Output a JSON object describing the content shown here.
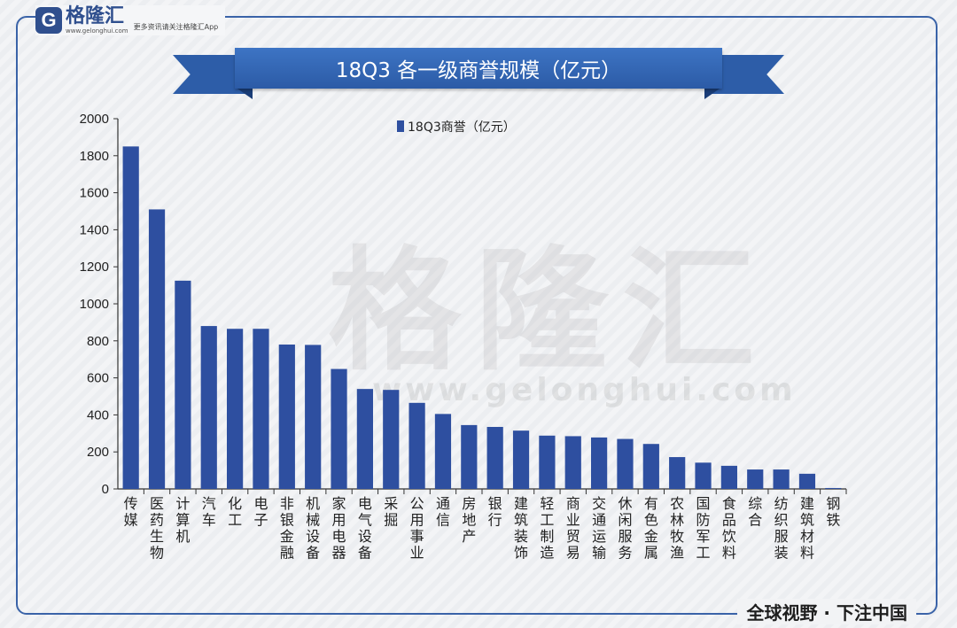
{
  "brand": {
    "name": "格隆汇",
    "logo_letter": "G",
    "url": "www.gelonghui.com",
    "slogan": "更多资讯请关注格隆汇App",
    "watermark_name": "格隆汇",
    "watermark_url": "www.gelonghui.com",
    "bottom_slogan": "全球视野 · 下注中国"
  },
  "colors": {
    "bar": "#2e4fa0",
    "ribbon": "#2d5da8",
    "frame": "#3a63a8"
  },
  "chart_data": {
    "type": "bar",
    "title": "18Q3 各一级商誉规模（亿元）",
    "legend": {
      "label": "18Q3商誉（亿元）",
      "position": "top-center"
    },
    "ylim": [
      0,
      2000
    ],
    "yticks": [
      0,
      200,
      400,
      600,
      800,
      1000,
      1200,
      1400,
      1600,
      1800,
      2000
    ],
    "grid": false,
    "categories": [
      "传媒",
      "医药生物",
      "计算机",
      "汽车",
      "化工",
      "电子",
      "非银金融",
      "机械设备",
      "家用电器",
      "电气设备",
      "采掘",
      "公用事业",
      "通信",
      "房地产",
      "银行",
      "建筑装饰",
      "轻工制造",
      "商业贸易",
      "交通运输",
      "休闲服务",
      "有色金属",
      "农林牧渔",
      "国防军工",
      "食品饮料",
      "综合",
      "纺织服装",
      "建筑材料",
      "钢铁"
    ],
    "values": [
      1850,
      1510,
      1125,
      880,
      865,
      865,
      780,
      778,
      648,
      540,
      535,
      465,
      405,
      345,
      335,
      315,
      288,
      285,
      278,
      270,
      243,
      172,
      142,
      125,
      105,
      105,
      82,
      5
    ]
  }
}
